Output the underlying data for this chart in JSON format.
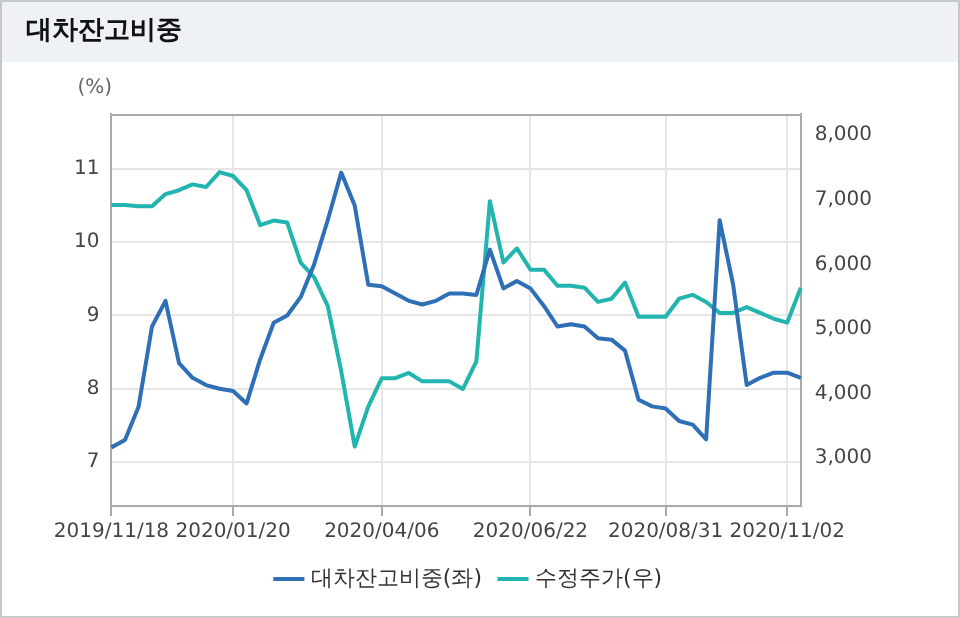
{
  "chart_data": {
    "type": "line",
    "title": "대차잔고비중",
    "ylabel": "(%)",
    "categories": [
      "2019/11/18",
      null,
      null,
      null,
      null,
      null,
      null,
      null,
      null,
      "2020/01/20",
      null,
      null,
      null,
      null,
      null,
      null,
      null,
      null,
      null,
      null,
      "2020/04/06",
      null,
      null,
      null,
      null,
      null,
      null,
      null,
      null,
      null,
      null,
      "2020/06/22",
      null,
      null,
      null,
      null,
      null,
      null,
      null,
      null,
      null,
      "2020/08/31",
      null,
      null,
      null,
      null,
      null,
      null,
      null,
      null,
      "2020/11/02",
      null
    ],
    "series": [
      {
        "name": "대차잔고비중(좌)",
        "color": "#2f6fb6",
        "values": [
          7.2,
          7.3,
          7.75,
          8.85,
          9.2,
          8.35,
          8.15,
          8.05,
          8.0,
          7.97,
          7.8,
          8.4,
          8.9,
          9.0,
          9.25,
          9.7,
          10.3,
          10.95,
          10.5,
          9.42,
          9.4,
          9.3,
          9.2,
          9.15,
          9.2,
          9.3,
          9.3,
          9.28,
          9.9,
          9.37,
          9.47,
          9.37,
          9.13,
          8.85,
          8.88,
          8.85,
          8.69,
          8.67,
          8.52,
          7.85,
          7.76,
          7.73,
          7.56,
          7.51,
          7.31,
          10.3,
          9.42,
          8.05,
          8.15,
          8.22,
          8.22,
          8.15
        ]
      },
      {
        "name": "수정주가(우)",
        "color": "#22b4ae",
        "axis": "y2",
        "values": [
          6920,
          6920,
          6900,
          6900,
          7090,
          7150,
          7240,
          7200,
          7430,
          7370,
          7150,
          6610,
          6680,
          6650,
          6030,
          5800,
          5360,
          4350,
          3180,
          3800,
          4240,
          4240,
          4320,
          4190,
          4190,
          4190,
          4070,
          4500,
          6980,
          6030,
          6250,
          5920,
          5920,
          5670,
          5670,
          5640,
          5420,
          5470,
          5720,
          5190,
          5190,
          5190,
          5470,
          5530,
          5420,
          5250,
          5250,
          5340,
          5250,
          5160,
          5100,
          5640
        ]
      }
    ],
    "ylim": [
      6.4,
      11.75
    ],
    "yticks": [
      7,
      8,
      9,
      10,
      11
    ],
    "y2lim": [
      2260,
      8330
    ],
    "y2ticks": [
      {
        "value": 3000,
        "label": "3,000"
      },
      {
        "value": 4000,
        "label": "4,000"
      },
      {
        "value": 5000,
        "label": "5,000"
      },
      {
        "value": 6000,
        "label": "6,000"
      },
      {
        "value": 7000,
        "label": "7,000"
      },
      {
        "value": 8000,
        "label": "8,000"
      }
    ],
    "grid": true,
    "legend": "bottom",
    "marker": "none",
    "line_style": "solid"
  }
}
